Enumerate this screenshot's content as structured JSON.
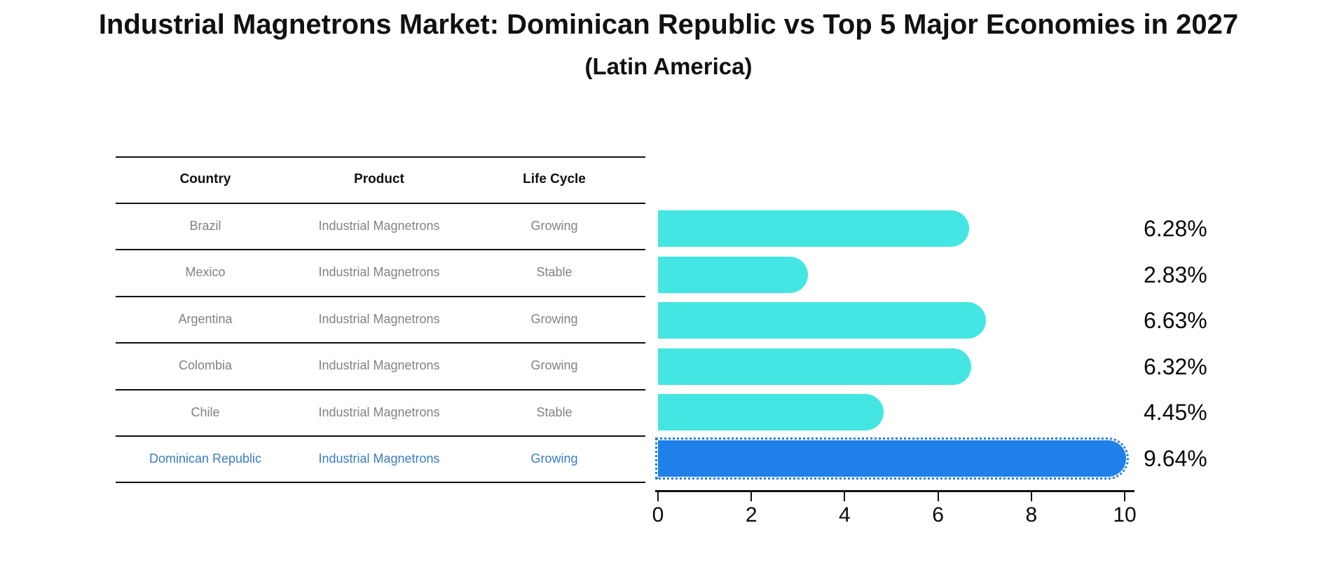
{
  "title": "Industrial Magnetrons Market: Dominican Republic vs Top 5 Major Economies in 2027",
  "subtitle": "(Latin America)",
  "table": {
    "headers": {
      "country": "Country",
      "product": "Product",
      "life_cycle": "Life Cycle"
    },
    "rows": [
      {
        "country": "Brazil",
        "product": "Industrial Magnetrons",
        "life_cycle": "Growing",
        "highlight": false
      },
      {
        "country": "Mexico",
        "product": "Industrial Magnetrons",
        "life_cycle": "Stable",
        "highlight": false
      },
      {
        "country": "Argentina",
        "product": "Industrial Magnetrons",
        "life_cycle": "Growing",
        "highlight": false
      },
      {
        "country": "Colombia",
        "product": "Industrial Magnetrons",
        "life_cycle": "Growing",
        "highlight": false
      },
      {
        "country": "Chile",
        "product": "Industrial Magnetrons",
        "life_cycle": "Stable",
        "highlight": false
      },
      {
        "country": "Dominican Republic",
        "product": "Industrial Magnetrons",
        "life_cycle": "Growing",
        "highlight": true
      }
    ]
  },
  "chart_data": {
    "type": "bar",
    "orientation": "horizontal",
    "title": "Industrial Magnetrons Market: Dominican Republic vs Top 5 Major Economies in 2027",
    "subtitle": "(Latin America)",
    "categories": [
      "Brazil",
      "Mexico",
      "Argentina",
      "Colombia",
      "Chile",
      "Dominican Republic"
    ],
    "values": [
      6.28,
      2.83,
      6.63,
      6.32,
      4.45,
      9.64
    ],
    "value_labels": [
      "6.28%",
      "2.83%",
      "6.63%",
      "6.32%",
      "4.45%",
      "9.64%"
    ],
    "xlim": [
      0,
      10
    ],
    "x_ticks": [
      "0",
      "2",
      "4",
      "6",
      "8",
      "10"
    ],
    "grid": "off",
    "legend": "none",
    "bar_color": "#43e6e2",
    "highlight_color": "#1f80e9",
    "highlight_index": 5
  },
  "colors": {
    "background": "#ffffff",
    "table_text": "#828282",
    "highlight_text": "#3a7cc4",
    "line_color": "#111111"
  }
}
